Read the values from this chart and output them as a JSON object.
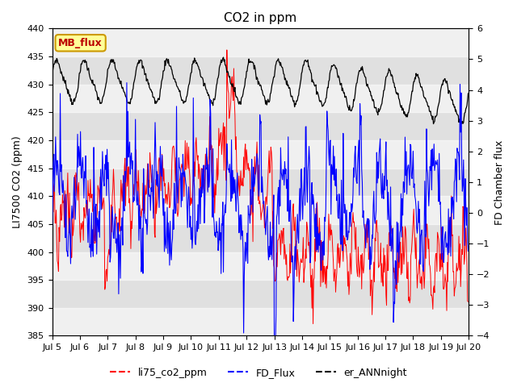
{
  "title": "CO2 in ppm",
  "ylabel_left": "LI7500 CO2 (ppm)",
  "ylabel_right": "FD Chamber flux",
  "ylim_left": [
    385,
    440
  ],
  "ylim_right": [
    -4.0,
    6.0
  ],
  "yticks_left": [
    385,
    390,
    395,
    400,
    405,
    410,
    415,
    420,
    425,
    430,
    435,
    440
  ],
  "yticks_right": [
    -4.0,
    -3.0,
    -2.0,
    -1.0,
    0.0,
    1.0,
    2.0,
    3.0,
    4.0,
    5.0,
    6.0
  ],
  "color_red": "#ff0000",
  "color_blue": "#0000ff",
  "color_black": "#000000",
  "legend_labels": [
    "li75_co2_ppm",
    "FD_Flux",
    "er_ANNnight"
  ],
  "annotation_text": "MB_flux",
  "annotation_color": "#bb0000",
  "annotation_bg": "#ffff99",
  "annotation_border": "#cc9900",
  "background_color": "#e0e0e0",
  "title_fontsize": 11,
  "tick_fontsize": 8,
  "label_fontsize": 9
}
